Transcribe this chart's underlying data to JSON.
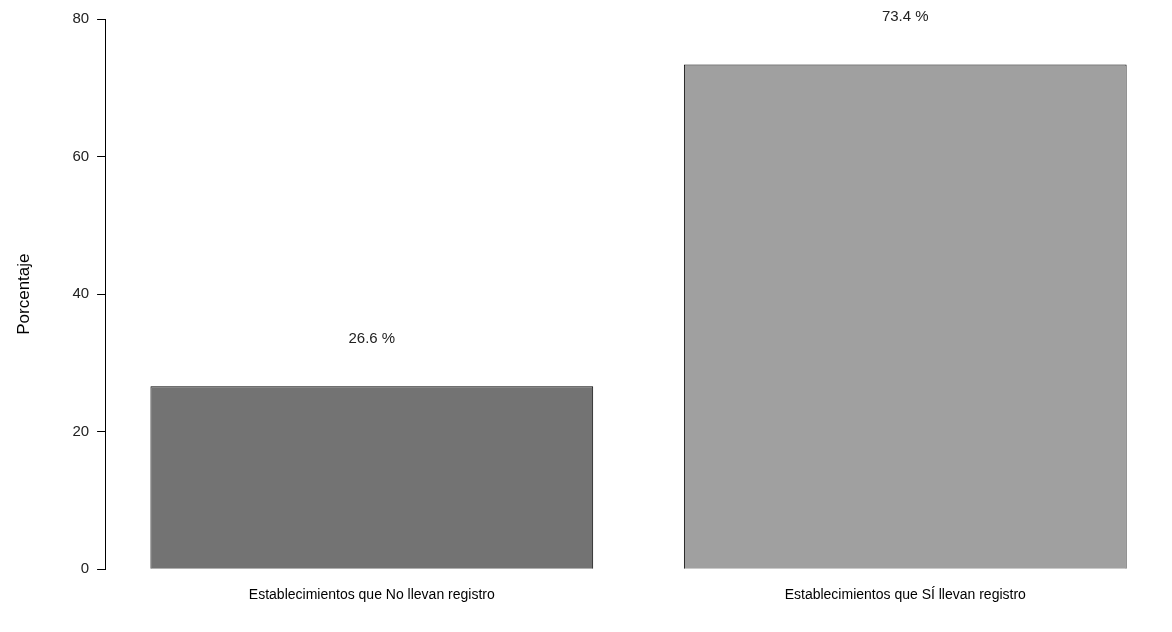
{
  "chart_data": {
    "type": "bar",
    "ylabel": "Porcentaje",
    "categories": [
      "Establecimientos que No llevan registro",
      "Establecimientos que SÍ llevan registro"
    ],
    "values": [
      26.6,
      73.4
    ],
    "colors": [
      "#737373",
      "#a0a0a0"
    ],
    "value_labels": [
      "26.6 %",
      "73.4 %"
    ],
    "ylim": [
      0,
      80
    ],
    "yticks": [
      0,
      20,
      40,
      60,
      80
    ],
    "grid": false,
    "legend": false
  }
}
